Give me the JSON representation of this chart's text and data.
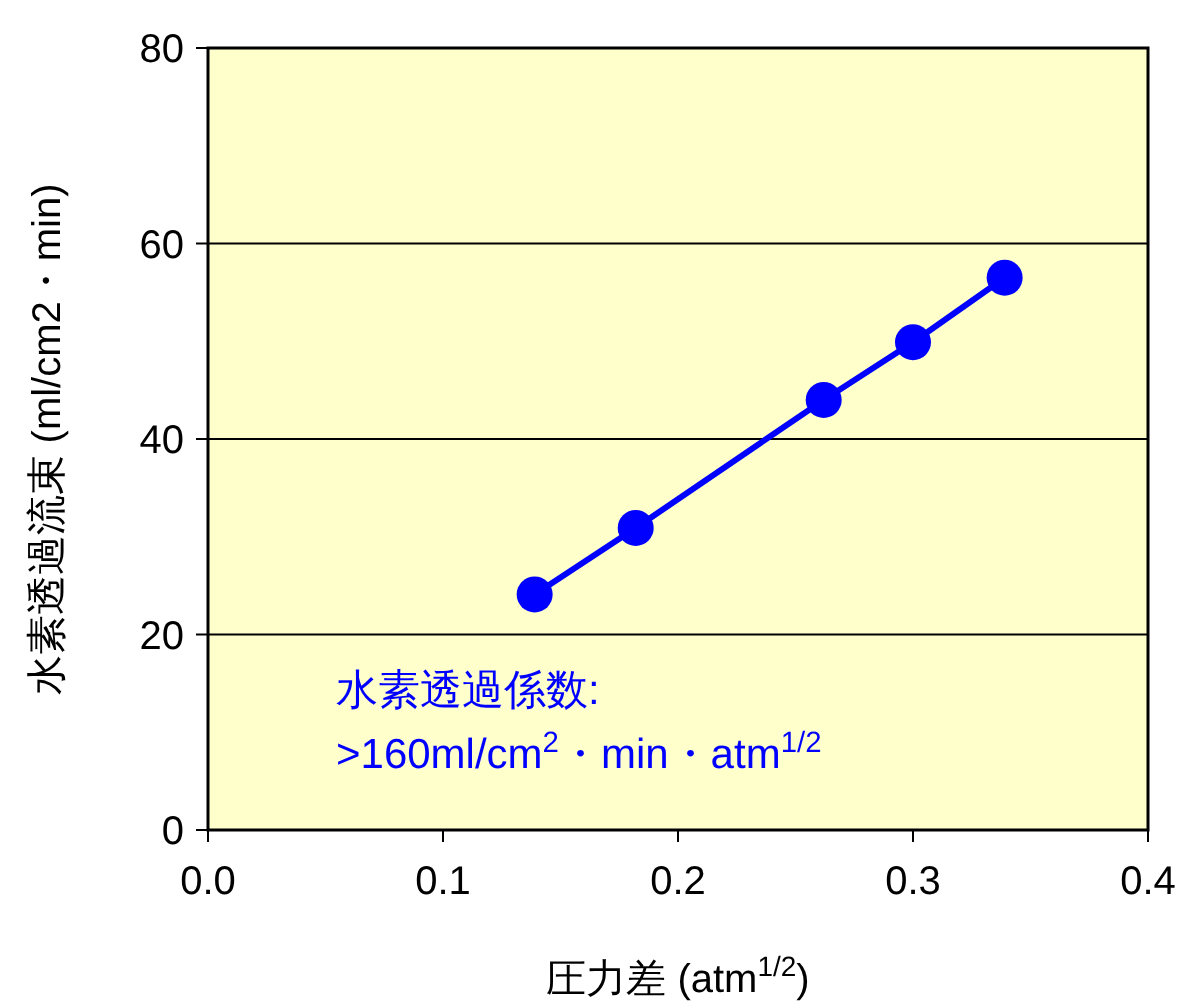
{
  "chart_data": {
    "type": "line",
    "xlabel": "圧力差 (atm$^{1/2}$)",
    "ylabel": "水素透過流束 (ml/cm2・min)",
    "annotations": [
      "水素透過係数:\n>160ml/cm$^{2}$・min・atm$^{1/2}$"
    ],
    "x": [
      0.139,
      0.182,
      0.262,
      0.3,
      0.339
    ],
    "series": [
      {
        "color": "#0000ff",
        "values": [
          24.1,
          30.9,
          44.0,
          49.9,
          56.5
        ]
      }
    ],
    "xlim": [
      0,
      0.4
    ],
    "xticks": [
      {
        "value": 0,
        "label": "0.0"
      },
      0.1,
      0.2,
      0.3,
      0.4
    ],
    "ylim": [
      0,
      80
    ],
    "yticks": [
      0,
      20,
      40,
      60,
      80
    ],
    "grid": "y",
    "marker": "circle",
    "line_style": "solid"
  }
}
